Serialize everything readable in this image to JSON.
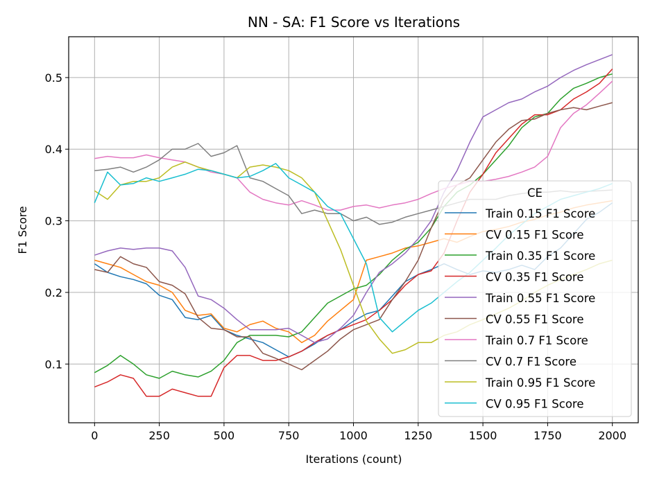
{
  "chart_data": {
    "type": "line",
    "title": "NN - SA: F1 Score vs Iterations",
    "xlabel": "Iterations (count)",
    "ylabel": "F1 Score",
    "xlim": [
      -100,
      2100
    ],
    "ylim": [
      0.018,
      0.557
    ],
    "xticks": [
      0,
      250,
      500,
      750,
      1000,
      1250,
      1500,
      1750,
      2000
    ],
    "yticks": [
      0.1,
      0.2,
      0.3,
      0.4,
      0.5
    ],
    "grid": true,
    "legend": {
      "title": "CE",
      "placement": "center-right"
    },
    "series": [
      {
        "name": "Train 0.15 F1 Score",
        "color": "#1f77b4",
        "x": [
          0,
          50,
          100,
          150,
          200,
          250,
          300,
          350,
          400,
          450,
          500,
          550,
          600,
          650,
          700,
          750,
          800,
          850,
          900,
          950,
          1000,
          1050,
          1100,
          1150,
          1200,
          1250,
          1300,
          1350,
          1400,
          1450,
          1500,
          1550,
          1600,
          1650,
          1700,
          1750,
          1800,
          1850,
          1900,
          1950,
          2000
        ],
        "y": [
          0.24,
          0.228,
          0.222,
          0.218,
          0.212,
          0.196,
          0.19,
          0.165,
          0.162,
          0.168,
          0.148,
          0.14,
          0.135,
          0.13,
          0.12,
          0.11,
          0.118,
          0.128,
          0.14,
          0.148,
          0.16,
          0.17,
          0.175,
          0.195,
          0.215,
          0.225,
          0.232,
          0.24,
          0.232,
          0.225,
          0.23,
          0.228,
          0.232,
          0.238,
          0.232,
          0.25,
          0.262,
          0.282,
          0.302,
          0.312,
          0.325
        ]
      },
      {
        "name": "CV 0.15 F1 Score",
        "color": "#ff7f0e",
        "x": [
          0,
          50,
          100,
          150,
          200,
          250,
          300,
          350,
          400,
          450,
          500,
          550,
          600,
          650,
          700,
          750,
          800,
          850,
          900,
          950,
          1000,
          1050,
          1100,
          1150,
          1200,
          1250,
          1300,
          1350,
          1400,
          1450,
          1500,
          1550,
          1600,
          1650,
          1700,
          1750,
          1800,
          1850,
          1900,
          1950,
          2000
        ],
        "y": [
          0.245,
          0.24,
          0.235,
          0.225,
          0.215,
          0.21,
          0.2,
          0.175,
          0.168,
          0.17,
          0.15,
          0.145,
          0.155,
          0.16,
          0.15,
          0.145,
          0.13,
          0.14,
          0.16,
          0.175,
          0.19,
          0.245,
          0.25,
          0.255,
          0.262,
          0.265,
          0.27,
          0.275,
          0.27,
          0.278,
          0.285,
          0.288,
          0.292,
          0.298,
          0.302,
          0.308,
          0.312,
          0.318,
          0.322,
          0.325,
          0.328
        ]
      },
      {
        "name": "Train 0.35 F1 Score",
        "color": "#2ca02c",
        "x": [
          0,
          50,
          100,
          150,
          200,
          250,
          300,
          350,
          400,
          450,
          500,
          550,
          600,
          650,
          700,
          750,
          800,
          850,
          900,
          950,
          1000,
          1050,
          1100,
          1150,
          1200,
          1250,
          1300,
          1350,
          1400,
          1450,
          1500,
          1550,
          1600,
          1650,
          1700,
          1750,
          1800,
          1850,
          1900,
          1950,
          2000
        ],
        "y": [
          0.088,
          0.098,
          0.112,
          0.1,
          0.085,
          0.08,
          0.09,
          0.085,
          0.082,
          0.09,
          0.105,
          0.13,
          0.14,
          0.14,
          0.14,
          0.138,
          0.145,
          0.165,
          0.185,
          0.195,
          0.205,
          0.21,
          0.225,
          0.245,
          0.26,
          0.27,
          0.29,
          0.32,
          0.34,
          0.35,
          0.365,
          0.385,
          0.405,
          0.43,
          0.445,
          0.45,
          0.47,
          0.485,
          0.492,
          0.5,
          0.505
        ]
      },
      {
        "name": "CV 0.35 F1 Score",
        "color": "#d62728",
        "x": [
          0,
          50,
          100,
          150,
          200,
          250,
          300,
          350,
          400,
          450,
          500,
          550,
          600,
          650,
          700,
          750,
          800,
          850,
          900,
          950,
          1000,
          1050,
          1100,
          1150,
          1200,
          1250,
          1300,
          1350,
          1400,
          1450,
          1500,
          1550,
          1600,
          1650,
          1700,
          1750,
          1800,
          1850,
          1900,
          1950,
          2000
        ],
        "y": [
          0.068,
          0.075,
          0.085,
          0.08,
          0.055,
          0.055,
          0.065,
          0.06,
          0.055,
          0.055,
          0.095,
          0.112,
          0.112,
          0.105,
          0.105,
          0.11,
          0.118,
          0.13,
          0.14,
          0.148,
          0.155,
          0.162,
          0.175,
          0.19,
          0.21,
          0.225,
          0.23,
          0.255,
          0.3,
          0.34,
          0.365,
          0.395,
          0.415,
          0.435,
          0.448,
          0.448,
          0.455,
          0.47,
          0.48,
          0.492,
          0.512
        ]
      },
      {
        "name": "Train 0.55 F1 Score",
        "color": "#9467bd",
        "x": [
          0,
          50,
          100,
          150,
          200,
          250,
          300,
          350,
          400,
          450,
          500,
          550,
          600,
          650,
          700,
          750,
          800,
          850,
          900,
          950,
          1000,
          1050,
          1100,
          1150,
          1200,
          1250,
          1300,
          1350,
          1400,
          1450,
          1500,
          1550,
          1600,
          1650,
          1700,
          1750,
          1800,
          1850,
          1900,
          1950,
          2000
        ],
        "y": [
          0.252,
          0.258,
          0.262,
          0.26,
          0.262,
          0.262,
          0.258,
          0.235,
          0.195,
          0.19,
          0.178,
          0.162,
          0.148,
          0.148,
          0.148,
          0.15,
          0.14,
          0.13,
          0.135,
          0.15,
          0.168,
          0.2,
          0.228,
          0.24,
          0.255,
          0.275,
          0.3,
          0.34,
          0.37,
          0.41,
          0.445,
          0.455,
          0.465,
          0.47,
          0.48,
          0.488,
          0.5,
          0.51,
          0.518,
          0.525,
          0.532
        ]
      },
      {
        "name": "CV 0.55 F1 Score",
        "color": "#8c564b",
        "x": [
          0,
          50,
          100,
          150,
          200,
          250,
          300,
          350,
          400,
          450,
          500,
          550,
          600,
          650,
          700,
          750,
          800,
          850,
          900,
          950,
          1000,
          1050,
          1100,
          1150,
          1200,
          1250,
          1300,
          1350,
          1400,
          1450,
          1500,
          1550,
          1600,
          1650,
          1700,
          1750,
          1800,
          1850,
          1900,
          1950,
          2000
        ],
        "y": [
          0.232,
          0.228,
          0.25,
          0.24,
          0.235,
          0.215,
          0.21,
          0.198,
          0.165,
          0.15,
          0.148,
          0.138,
          0.138,
          0.115,
          0.108,
          0.1,
          0.092,
          0.105,
          0.118,
          0.135,
          0.148,
          0.155,
          0.162,
          0.19,
          0.215,
          0.245,
          0.29,
          0.33,
          0.35,
          0.36,
          0.385,
          0.41,
          0.428,
          0.44,
          0.442,
          0.45,
          0.455,
          0.458,
          0.455,
          0.46,
          0.465
        ]
      },
      {
        "name": "Train 0.7 F1 Score",
        "color": "#e377c2",
        "x": [
          0,
          50,
          100,
          150,
          200,
          250,
          300,
          350,
          400,
          450,
          500,
          550,
          600,
          650,
          700,
          750,
          800,
          850,
          900,
          950,
          1000,
          1050,
          1100,
          1150,
          1200,
          1250,
          1300,
          1350,
          1400,
          1450,
          1500,
          1550,
          1600,
          1650,
          1700,
          1750,
          1800,
          1850,
          1900,
          1950,
          2000
        ],
        "y": [
          0.387,
          0.39,
          0.388,
          0.388,
          0.392,
          0.388,
          0.385,
          0.382,
          0.375,
          0.368,
          0.365,
          0.36,
          0.34,
          0.33,
          0.325,
          0.322,
          0.328,
          0.322,
          0.315,
          0.315,
          0.32,
          0.322,
          0.318,
          0.322,
          0.325,
          0.33,
          0.338,
          0.345,
          0.35,
          0.355,
          0.355,
          0.358,
          0.362,
          0.368,
          0.375,
          0.39,
          0.43,
          0.45,
          0.462,
          0.478,
          0.495
        ]
      },
      {
        "name": "CV 0.7 F1 Score",
        "color": "#7f7f7f",
        "x": [
          0,
          50,
          100,
          150,
          200,
          250,
          300,
          350,
          400,
          450,
          500,
          550,
          600,
          650,
          700,
          750,
          800,
          850,
          900,
          950,
          1000,
          1050,
          1100,
          1150,
          1200,
          1250,
          1300,
          1350,
          1400,
          1450,
          1500,
          1550,
          1600,
          1650,
          1700,
          1750,
          1800,
          1850,
          1900,
          1950,
          2000
        ],
        "y": [
          0.37,
          0.372,
          0.375,
          0.368,
          0.375,
          0.385,
          0.4,
          0.4,
          0.408,
          0.39,
          0.395,
          0.405,
          0.36,
          0.355,
          0.345,
          0.335,
          0.31,
          0.315,
          0.31,
          0.31,
          0.3,
          0.305,
          0.295,
          0.298,
          0.305,
          0.31,
          0.315,
          0.32,
          0.325,
          0.33,
          0.33,
          0.33,
          0.335,
          0.338,
          0.34,
          0.34,
          0.342,
          0.34,
          0.341,
          0.342,
          0.343
        ]
      },
      {
        "name": "Train 0.95 F1 Score",
        "color": "#bcbd22",
        "x": [
          0,
          50,
          100,
          150,
          200,
          250,
          300,
          350,
          400,
          450,
          500,
          550,
          600,
          650,
          700,
          750,
          800,
          850,
          900,
          950,
          1000,
          1050,
          1100,
          1150,
          1200,
          1250,
          1300,
          1350,
          1400,
          1450,
          1500,
          1550,
          1600,
          1650,
          1700,
          1750,
          1800,
          1850,
          1900,
          1950,
          2000
        ],
        "y": [
          0.342,
          0.33,
          0.35,
          0.355,
          0.355,
          0.36,
          0.375,
          0.382,
          0.375,
          0.37,
          0.365,
          0.36,
          0.375,
          0.378,
          0.375,
          0.37,
          0.36,
          0.34,
          0.3,
          0.26,
          0.21,
          0.16,
          0.135,
          0.115,
          0.12,
          0.13,
          0.13,
          0.14,
          0.145,
          0.155,
          0.162,
          0.17,
          0.178,
          0.188,
          0.2,
          0.21,
          0.218,
          0.225,
          0.232,
          0.24,
          0.245
        ]
      },
      {
        "name": "CV 0.95 F1 Score",
        "color": "#17becf",
        "x": [
          0,
          50,
          100,
          150,
          200,
          250,
          300,
          350,
          400,
          450,
          500,
          550,
          600,
          650,
          700,
          750,
          800,
          850,
          900,
          950,
          1000,
          1050,
          1100,
          1150,
          1200,
          1250,
          1300,
          1350,
          1400,
          1450,
          1500,
          1550,
          1600,
          1650,
          1700,
          1750,
          1800,
          1850,
          1900,
          1950,
          2000
        ],
        "y": [
          0.325,
          0.368,
          0.35,
          0.352,
          0.36,
          0.355,
          0.36,
          0.365,
          0.372,
          0.37,
          0.365,
          0.36,
          0.362,
          0.37,
          0.38,
          0.36,
          0.35,
          0.34,
          0.32,
          0.31,
          0.275,
          0.24,
          0.165,
          0.145,
          0.16,
          0.175,
          0.185,
          0.2,
          0.215,
          0.228,
          0.245,
          0.262,
          0.28,
          0.295,
          0.31,
          0.32,
          0.33,
          0.335,
          0.34,
          0.345,
          0.352
        ]
      }
    ]
  }
}
